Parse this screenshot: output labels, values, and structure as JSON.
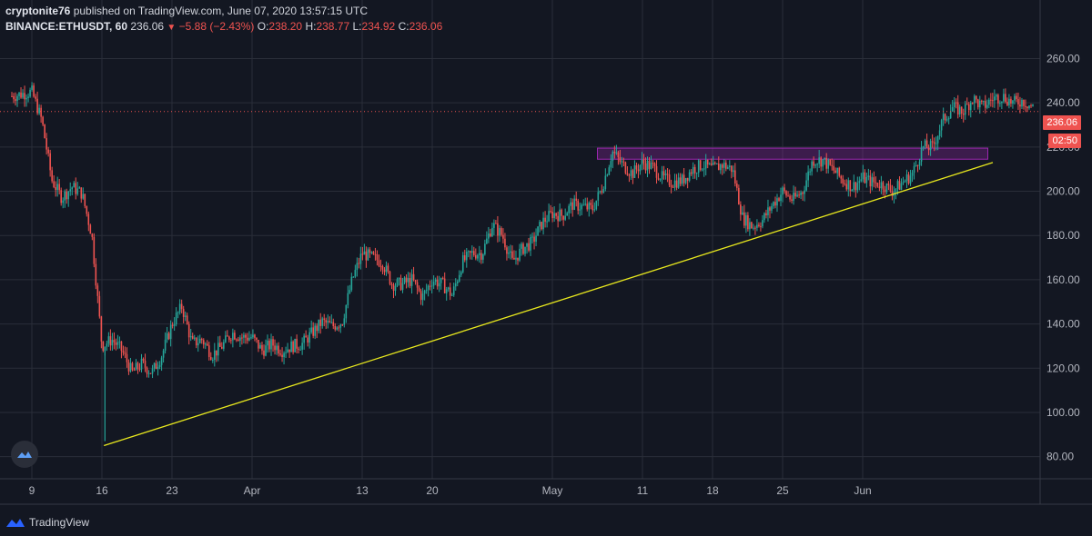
{
  "header": {
    "author": "cryptonite76",
    "published_text": "published on TradingView.com, June 07, 2020 13:57:15 UTC",
    "symbol": "BINANCE:ETHUSDT, 60",
    "last": "236.06",
    "change": "−5.88 (−2.43%)",
    "o_label": "O:",
    "o_value": "238.20",
    "h_label": "H:",
    "h_value": "238.77",
    "l_label": "L:",
    "l_value": "234.92",
    "c_label": "C:",
    "c_value": "236.06"
  },
  "price_tags": {
    "last_price": "236.06",
    "countdown": "02:50"
  },
  "footer": {
    "brand": "TradingView"
  },
  "colors": {
    "background": "#131722",
    "grid": "#2a2e39",
    "up": "#26a69a",
    "down": "#ef5350",
    "trendline": "#e8e81e",
    "zone": "#9c27b0"
  },
  "chart_data": {
    "type": "candlestick",
    "title": "",
    "xlabel": "",
    "ylabel": "",
    "ylim": [
      70,
      268
    ],
    "y_ticks": [
      "80.00",
      "100.00",
      "120.00",
      "140.00",
      "160.00",
      "180.00",
      "200.00",
      "220.00",
      "240.00",
      "260.00"
    ],
    "x_ticks": [
      "9",
      "16",
      "23",
      "Apr",
      "13",
      "20",
      "May",
      "11",
      "18",
      "25",
      "Jun"
    ],
    "price_path": [
      [
        0,
        243
      ],
      [
        2,
        245
      ],
      [
        3,
        232
      ],
      [
        4,
        205
      ],
      [
        5,
        197
      ],
      [
        6,
        202
      ],
      [
        7,
        199
      ],
      [
        8,
        180
      ],
      [
        9,
        130
      ],
      [
        10,
        133
      ],
      [
        11,
        128
      ],
      [
        12,
        118
      ],
      [
        13,
        122
      ],
      [
        14,
        118
      ],
      [
        15,
        126
      ],
      [
        16,
        140
      ],
      [
        17,
        148
      ],
      [
        18,
        131
      ],
      [
        19,
        133
      ],
      [
        20,
        126
      ],
      [
        21,
        130
      ],
      [
        22,
        136
      ],
      [
        23,
        134
      ],
      [
        24,
        134
      ],
      [
        25,
        128
      ],
      [
        26,
        131
      ],
      [
        27,
        128
      ],
      [
        28,
        130
      ],
      [
        29,
        131
      ],
      [
        30,
        136
      ],
      [
        31,
        141
      ],
      [
        32,
        139
      ],
      [
        33,
        141
      ],
      [
        34,
        160
      ],
      [
        35,
        172
      ],
      [
        36,
        170
      ],
      [
        37,
        168
      ],
      [
        38,
        158
      ],
      [
        39,
        158
      ],
      [
        40,
        160
      ],
      [
        41,
        152
      ],
      [
        42,
        160
      ],
      [
        43,
        158
      ],
      [
        44,
        153
      ],
      [
        45,
        168
      ],
      [
        46,
        172
      ],
      [
        47,
        172
      ],
      [
        48,
        185
      ],
      [
        49,
        180
      ],
      [
        50,
        168
      ],
      [
        51,
        174
      ],
      [
        52,
        177
      ],
      [
        53,
        186
      ],
      [
        54,
        190
      ],
      [
        55,
        189
      ],
      [
        56,
        194
      ],
      [
        57,
        193
      ],
      [
        58,
        192
      ],
      [
        59,
        202
      ],
      [
        60,
        218
      ],
      [
        61,
        212
      ],
      [
        62,
        208
      ],
      [
        63,
        213
      ],
      [
        64,
        211
      ],
      [
        65,
        206
      ],
      [
        66,
        204
      ],
      [
        67,
        205
      ],
      [
        68,
        210
      ],
      [
        69,
        212
      ],
      [
        70,
        210
      ],
      [
        71,
        212
      ],
      [
        72,
        210
      ],
      [
        73,
        188
      ],
      [
        74,
        184
      ],
      [
        75,
        187
      ],
      [
        76,
        194
      ],
      [
        77,
        200
      ],
      [
        78,
        196
      ],
      [
        79,
        200
      ],
      [
        80,
        214
      ],
      [
        81,
        214
      ],
      [
        82,
        210
      ],
      [
        83,
        205
      ],
      [
        84,
        202
      ],
      [
        85,
        206
      ],
      [
        86,
        204
      ],
      [
        87,
        203
      ],
      [
        88,
        200
      ],
      [
        89,
        204
      ],
      [
        90,
        208
      ],
      [
        91,
        220
      ],
      [
        92,
        220
      ],
      [
        93,
        232
      ],
      [
        94,
        238
      ],
      [
        95,
        236
      ],
      [
        96,
        242
      ],
      [
        97,
        238
      ],
      [
        98,
        242
      ],
      [
        99,
        243
      ],
      [
        100,
        240
      ],
      [
        101,
        241
      ],
      [
        102,
        238
      ]
    ],
    "x_days": 102,
    "trendline": {
      "start": [
        0,
        85
      ],
      "end": [
        98,
        213
      ]
    },
    "resistance_zone": {
      "x": [
        58.5,
        97.5
      ],
      "y": [
        214.5,
        219.5
      ]
    }
  }
}
